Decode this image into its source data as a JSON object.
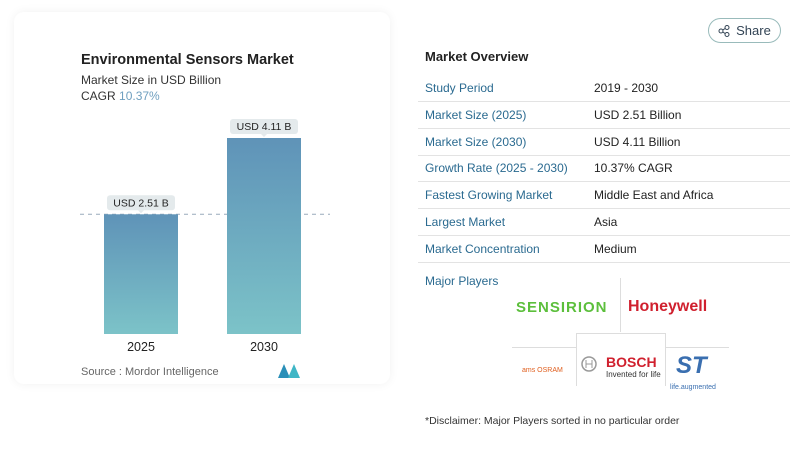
{
  "share": {
    "label": "Share",
    "icon": "share-icon"
  },
  "chart_data": {
    "type": "bar",
    "title": "Environmental Sensors Market",
    "subtitle": "Market Size in USD Billion",
    "cagr_label": "CAGR",
    "cagr_value": "10.37%",
    "categories": [
      "2025",
      "2030"
    ],
    "values": [
      2.51,
      4.11
    ],
    "data_labels": [
      "USD 2.51 B",
      "USD 4.11 B"
    ],
    "colors": {
      "bar_top": "#5f93b8",
      "bar_bottom": "#7cc3c8"
    },
    "reference_line": 2.51,
    "source": "Source :  Mordor Intelligence"
  },
  "overview": {
    "title": "Market Overview",
    "rows": [
      {
        "k": "Study Period",
        "v": "2019 - 2030"
      },
      {
        "k": "Market Size (2025)",
        "v": "USD 2.51 Billion"
      },
      {
        "k": "Market Size (2030)",
        "v": "USD 4.11 Billion"
      },
      {
        "k": "Growth Rate (2025 - 2030)",
        "v": "10.37% CAGR"
      },
      {
        "k": "Fastest Growing Market",
        "v": "Middle East and Africa"
      },
      {
        "k": "Largest Market",
        "v": "Asia"
      },
      {
        "k": "Market Concentration",
        "v": "Medium"
      }
    ],
    "players_title": "Major Players",
    "players": [
      "SENSIRION",
      "Honeywell",
      "ams OSRAM",
      "BOSCH",
      "Invented for life",
      "ST",
      "life.augmented"
    ],
    "disclaimer": "*Disclaimer: Major Players sorted in no particular order"
  }
}
